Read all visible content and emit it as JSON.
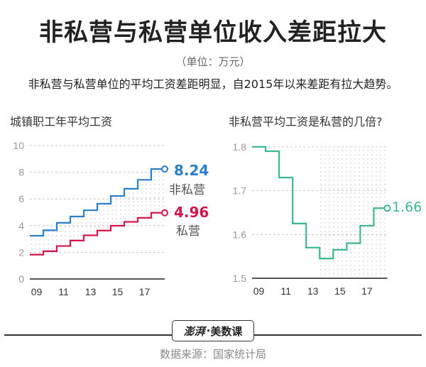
{
  "header": {
    "title": "非私营与私营单位收入差距拉大",
    "unit": "（单位：万元）",
    "subtitle": "非私营与私营单位的平均工资差距明显，自2015年以来差距有拉大趋势。"
  },
  "colors": {
    "non_private": "#2a7fc8",
    "private": "#d6164a",
    "ratio": "#3db88e",
    "grid": "#bbbbbb",
    "axis": "#555555"
  },
  "chart_data": [
    {
      "type": "line",
      "step": true,
      "title": "城镇职工年平均工资",
      "categories": [
        "09",
        "10",
        "11",
        "12",
        "13",
        "14",
        "15",
        "16",
        "17",
        "18"
      ],
      "x_tick_labels": [
        "09",
        "11",
        "13",
        "15",
        "17"
      ],
      "y_ticks": [
        0,
        2,
        4,
        6,
        8,
        10
      ],
      "ylim": [
        0,
        10
      ],
      "grid": true,
      "series": [
        {
          "name": "非私营",
          "values": [
            3.24,
            3.65,
            4.21,
            4.68,
            5.15,
            5.64,
            6.22,
            6.76,
            7.43,
            8.24
          ],
          "end_label": "8.24"
        },
        {
          "name": "私营",
          "values": [
            1.82,
            2.08,
            2.47,
            2.88,
            3.27,
            3.63,
            3.99,
            4.28,
            4.58,
            4.96
          ],
          "end_label": "4.96"
        }
      ],
      "annotation": "shaded dotted area between the two series"
    },
    {
      "type": "line",
      "step": true,
      "title": "非私营平均工资是私营的几倍?",
      "categories": [
        "09",
        "10",
        "11",
        "12",
        "13",
        "14",
        "15",
        "16",
        "17",
        "18"
      ],
      "x_tick_labels": [
        "09",
        "11",
        "13",
        "15",
        "17"
      ],
      "y_ticks": [
        1.5,
        1.6,
        1.7,
        1.8
      ],
      "ylim": [
        1.5,
        1.8
      ],
      "grid": true,
      "series": [
        {
          "name": "倍数",
          "values": [
            1.8,
            1.79,
            1.73,
            1.625,
            1.57,
            1.545,
            1.565,
            1.58,
            1.62,
            1.66
          ],
          "end_label": "1.66"
        }
      ],
      "annotation": "shaded dotted area from 2014 onward"
    }
  ],
  "left_chart": {
    "title": "城镇职工年平均工资",
    "series_labels": {
      "non_private": "非私营",
      "private": "私营"
    },
    "end_values": {
      "non_private": "8.24",
      "private": "4.96"
    }
  },
  "right_chart": {
    "title": "非私营平均工资是私营的几倍?",
    "end_value": "1.66"
  },
  "footer": {
    "brand": "澎湃",
    "brand_sub": "·",
    "column": "美数课",
    "source": "数据来源：国家统计局"
  }
}
